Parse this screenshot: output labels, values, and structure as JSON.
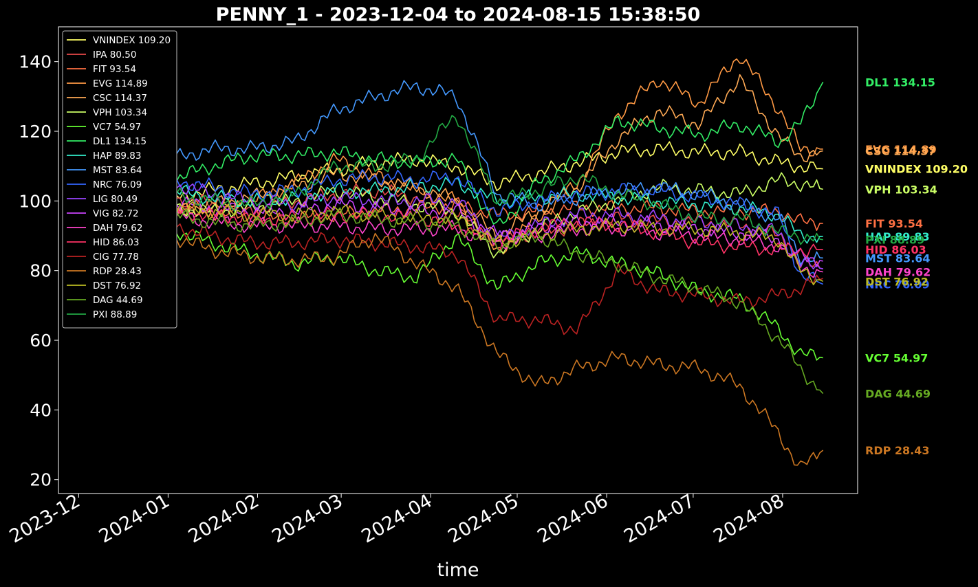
{
  "chart_data": {
    "type": "line",
    "title": "PENNY_1 - 2023-12-04 to 2024-08-15 15:38:50",
    "xlabel": "time",
    "ylabel": "",
    "x_range": [
      "2023-12-04",
      "2024-08-15"
    ],
    "xlim": [
      "2023-11-24",
      "2024-08-27"
    ],
    "ylim": [
      16,
      150
    ],
    "x_ticks": [
      "2023-12",
      "2024-01",
      "2024-02",
      "2024-03",
      "2024-04",
      "2024-05",
      "2024-06",
      "2024-07",
      "2024-08"
    ],
    "x_tick_dates": [
      "2023-12-01",
      "2024-01-01",
      "2024-02-01",
      "2024-03-01",
      "2024-04-01",
      "2024-05-01",
      "2024-06-01",
      "2024-07-01",
      "2024-08-01"
    ],
    "y_ticks": [
      20,
      40,
      60,
      80,
      100,
      120,
      140
    ],
    "legend_position": "upper-left",
    "grid": false,
    "background": "#000000",
    "dates": [
      "2023-12-04",
      "2023-12-18",
      "2024-01-02",
      "2024-01-16",
      "2024-01-30",
      "2024-02-14",
      "2024-02-28",
      "2024-03-13",
      "2024-03-27",
      "2024-04-10",
      "2024-04-24",
      "2024-05-08",
      "2024-05-22",
      "2024-06-05",
      "2024-06-19",
      "2024-07-03",
      "2024-07-17",
      "2024-07-31",
      "2024-08-07",
      "2024-08-15"
    ],
    "series": [
      {
        "name": "VNINDEX",
        "label": "VNINDEX 109.20",
        "end_label": "VNINDEX 109.20",
        "color": "#ffff66",
        "values": [
          100,
          99,
          101,
          103,
          105,
          107,
          109,
          111,
          112,
          110,
          105,
          108,
          111,
          114,
          115,
          114,
          114,
          111,
          110,
          109.2
        ]
      },
      {
        "name": "IPA",
        "label": "IPA 80.50",
        "end_label": "",
        "color": "#e84a4a",
        "values": [
          100,
          97,
          101,
          99,
          97,
          100,
          102,
          103,
          101,
          97,
          88,
          91,
          93,
          95,
          94,
          94,
          93,
          90,
          82,
          80.5
        ]
      },
      {
        "name": "FIT",
        "label": "FIT 93.54",
        "end_label": "FIT 93.54",
        "color": "#ff7043",
        "values": [
          100,
          98,
          99,
          97,
          95,
          95,
          96,
          97,
          98,
          99,
          96,
          97,
          98,
          98,
          98,
          97,
          97,
          97,
          94,
          93.54
        ]
      },
      {
        "name": "EVG",
        "label": "EVG 114.89",
        "end_label": "EVG 114.89",
        "color": "#ff9944",
        "values": [
          100,
          96,
          95,
          98,
          100,
          105,
          112,
          107,
          103,
          100,
          85,
          95,
          105,
          125,
          135,
          128,
          142,
          126,
          115,
          114.89
        ]
      },
      {
        "name": "CSC",
        "label": "CSC 114.37",
        "end_label": "CSC 114.37",
        "color": "#ffaa55",
        "values": [
          100,
          98,
          97,
          99,
          101,
          104,
          108,
          106,
          104,
          100,
          90,
          97,
          104,
          118,
          126,
          122,
          135,
          118,
          113,
          114.37
        ]
      },
      {
        "name": "VPH",
        "label": "VPH 103.34",
        "end_label": "VPH 103.34",
        "color": "#ccff66",
        "values": [
          100,
          99,
          98,
          97,
          98,
          100,
          103,
          101,
          99,
          97,
          85,
          92,
          97,
          100,
          104,
          103,
          102,
          106,
          105,
          103.34
        ]
      },
      {
        "name": "VC7",
        "label": "VC7 54.97",
        "end_label": "VC7 54.97",
        "color": "#66ff33",
        "values": [
          100,
          97,
          92,
          88,
          85,
          82,
          84,
          80,
          78,
          90,
          75,
          82,
          85,
          82,
          79,
          74,
          72,
          63,
          56,
          54.97
        ]
      },
      {
        "name": "DL1",
        "label": "DL1 134.15",
        "end_label": "DL1 134.15",
        "color": "#33ee66",
        "values": [
          100,
          102,
          106,
          110,
          113,
          113,
          114,
          112,
          111,
          112,
          92,
          105,
          112,
          123,
          121,
          119,
          122,
          117,
          122,
          134.15
        ]
      },
      {
        "name": "HAP",
        "label": "HAP 89.83",
        "end_label": "HAP 89.83",
        "color": "#33eecc",
        "values": [
          100,
          102,
          103,
          101,
          100,
          101,
          103,
          103,
          104,
          105,
          100,
          101,
          102,
          101,
          100,
          99,
          98,
          96,
          90,
          89.83
        ]
      },
      {
        "name": "MST",
        "label": "MST 83.64",
        "end_label": "MST 83.64",
        "color": "#4499ff",
        "values": [
          100,
          108,
          112,
          115,
          115,
          117,
          126,
          130,
          133,
          130,
          102,
          99,
          101,
          103,
          104,
          102,
          99,
          95,
          84,
          83.64
        ]
      },
      {
        "name": "NRC",
        "label": "NRC 76.09",
        "end_label": "NRC 76.09",
        "color": "#3366ff",
        "values": [
          100,
          104,
          106,
          104,
          102,
          103,
          106,
          107,
          106,
          107,
          97,
          100,
          102,
          103,
          103,
          101,
          99,
          96,
          79,
          76.09
        ]
      },
      {
        "name": "LIG",
        "label": "LIG 80.49",
        "end_label": "",
        "color": "#9944ff",
        "values": [
          100,
          103,
          105,
          102,
          100,
          99,
          101,
          100,
          100,
          100,
          89,
          93,
          96,
          96,
          95,
          94,
          93,
          91,
          82,
          80.49
        ]
      },
      {
        "name": "VIG",
        "label": "VIG 82.72",
        "end_label": "",
        "color": "#cc44ff",
        "values": [
          100,
          101,
          100,
          98,
          97,
          97,
          99,
          98,
          97,
          97,
          90,
          92,
          94,
          94,
          93,
          92,
          91,
          89,
          84,
          82.72
        ]
      },
      {
        "name": "DAH",
        "label": "DAH 79.62",
        "end_label": "DAH 79.62",
        "color": "#ff44cc",
        "values": [
          100,
          99,
          96,
          94,
          93,
          93,
          93,
          92,
          92,
          92,
          88,
          90,
          92,
          92,
          91,
          90,
          89,
          87,
          81,
          79.62
        ]
      },
      {
        "name": "HID",
        "label": "HID 86.03",
        "end_label": "HID 86.03",
        "color": "#ff3366",
        "values": [
          100,
          98,
          97,
          96,
          95,
          95,
          96,
          96,
          95,
          93,
          88,
          92,
          94,
          93,
          91,
          88,
          87,
          86,
          86,
          86.03
        ]
      },
      {
        "name": "CIG",
        "label": "CIG 77.78",
        "end_label": "",
        "color": "#bb2222",
        "values": [
          100,
          95,
          93,
          90,
          88,
          88,
          89,
          88,
          87,
          85,
          66,
          66,
          63,
          80,
          74,
          73,
          71,
          73,
          75,
          77.78
        ]
      },
      {
        "name": "RDP",
        "label": "RDP 28.43",
        "end_label": "RDP 28.43",
        "color": "#cc7722",
        "values": [
          100,
          95,
          90,
          86,
          84,
          83,
          84,
          90,
          82,
          75,
          56,
          47,
          52,
          55,
          53,
          52,
          47,
          33,
          23,
          28.43
        ]
      },
      {
        "name": "DST",
        "label": "DST 76.92",
        "end_label": "DST 76.92",
        "color": "#bbbb22",
        "values": [
          100,
          100,
          98,
          97,
          96,
          96,
          97,
          96,
          95,
          95,
          88,
          90,
          92,
          93,
          92,
          92,
          91,
          89,
          80,
          76.92
        ]
      },
      {
        "name": "DAG",
        "label": "DAG 44.69",
        "end_label": "DAG 44.69",
        "color": "#66aa22",
        "values": [
          100,
          99,
          96,
          94,
          93,
          94,
          96,
          95,
          94,
          93,
          87,
          90,
          85,
          82,
          78,
          75,
          71,
          60,
          52,
          44.69
        ]
      },
      {
        "name": "PXI",
        "label": "PXI 88.89",
        "end_label": "PXI 88.89",
        "color": "#22aa44",
        "values": [
          100,
          101,
          102,
          100,
          99,
          102,
          110,
          110,
          112,
          125,
          100,
          103,
          107,
          102,
          99,
          95,
          95,
          91,
          90,
          88.89
        ]
      }
    ]
  }
}
